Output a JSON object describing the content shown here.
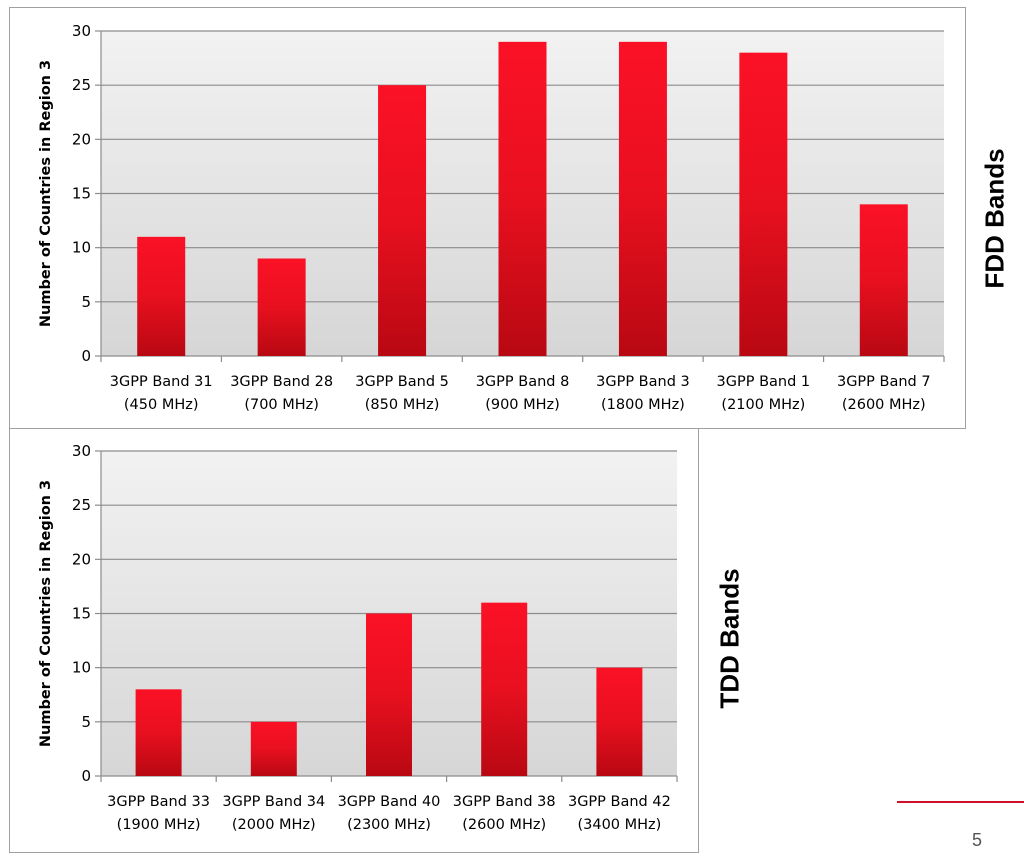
{
  "chart_data": [
    {
      "type": "bar",
      "ylabel": "Number of Countries in Region 3",
      "ylim": [
        0,
        30
      ],
      "yticks": [
        0,
        5,
        10,
        15,
        20,
        25,
        30
      ],
      "grid": true,
      "categories": [
        [
          "3GPP Band 31",
          "(450 MHz)"
        ],
        [
          "3GPP Band 28",
          "(700 MHz)"
        ],
        [
          "3GPP Band 5",
          "(850 MHz)"
        ],
        [
          "3GPP Band 8",
          "(900 MHz)"
        ],
        [
          "3GPP Band 3",
          "(1800 MHz)"
        ],
        [
          "3GPP Band 1",
          "(2100 MHz)"
        ],
        [
          "3GPP Band 7",
          "(2600 MHz)"
        ]
      ],
      "values": [
        11,
        9,
        25,
        29,
        29,
        28,
        14
      ],
      "bar_color": "#e8101f",
      "side_label": "FDD Bands"
    },
    {
      "type": "bar",
      "ylabel": "Number of Countries in Region 3",
      "ylim": [
        0,
        30
      ],
      "yticks": [
        0,
        5,
        10,
        15,
        20,
        25,
        30
      ],
      "grid": true,
      "categories": [
        [
          "3GPP Band 33",
          "(1900 MHz)"
        ],
        [
          "3GPP Band 34",
          "(2000 MHz)"
        ],
        [
          "3GPP Band 40",
          "(2300 MHz)"
        ],
        [
          "3GPP Band 38",
          "(2600 MHz)"
        ],
        [
          "3GPP Band 42",
          "(3400 MHz)"
        ]
      ],
      "values": [
        8,
        5,
        15,
        16,
        10
      ],
      "bar_color": "#e8101f",
      "side_label": "TDD Bands"
    }
  ],
  "page": {
    "number": "5",
    "accent": "#d0102a"
  }
}
